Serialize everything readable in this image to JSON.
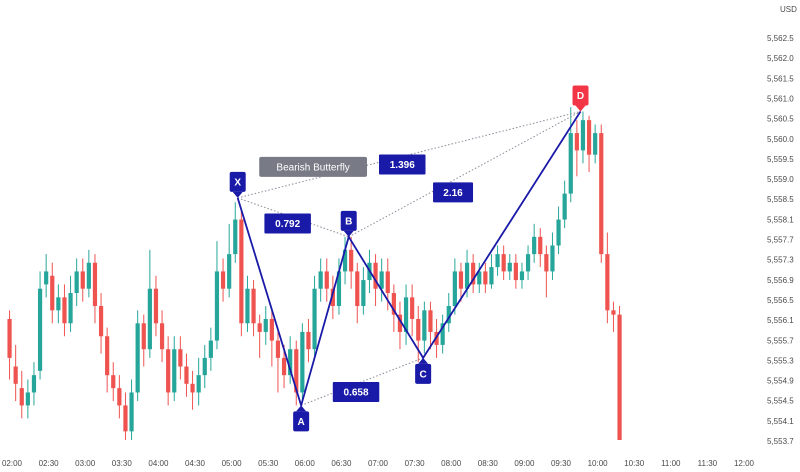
{
  "chart_data": {
    "type": "candlestick",
    "currency": "USD",
    "y_ticks": [
      "5,562.5",
      "5,562.0",
      "5,561.5",
      "5,561.0",
      "5,560.5",
      "5,560.0",
      "5,559.5",
      "5,559.0",
      "5,558.5",
      "5,558.1",
      "5,557.7",
      "5,557.3",
      "5,556.9",
      "5,556.5",
      "5,556.1",
      "5,555.7",
      "5,555.3",
      "5,554.9",
      "5,554.5",
      "5,554.1",
      "5,553.7"
    ],
    "x_ticks": [
      "02:00",
      "02:30",
      "03:00",
      "03:30",
      "04:00",
      "04:30",
      "05:00",
      "05:30",
      "06:00",
      "06:30",
      "07:00",
      "07:30",
      "08:00",
      "08:30",
      "09:00",
      "09:30",
      "10:00",
      "10:30",
      "11:00",
      "11:30",
      "12:00"
    ],
    "ylim": [
      5553.4,
      5562.7
    ],
    "candles": [
      {
        "t": "01:58",
        "o": 5556.2,
        "c": 5555.3,
        "h": 5556.4,
        "l": 5554.8
      },
      {
        "t": "02:03",
        "o": 5555.1,
        "c": 5554.7,
        "h": 5555.6,
        "l": 5554.3
      },
      {
        "t": "02:08",
        "o": 5554.6,
        "c": 5554.2,
        "h": 5555.0,
        "l": 5553.9
      },
      {
        "t": "02:13",
        "o": 5554.2,
        "c": 5554.5,
        "h": 5554.8,
        "l": 5553.9
      },
      {
        "t": "02:18",
        "o": 5554.5,
        "c": 5554.9,
        "h": 5555.2,
        "l": 5554.2
      },
      {
        "t": "02:23",
        "o": 5555.0,
        "c": 5556.9,
        "h": 5557.3,
        "l": 5554.8
      },
      {
        "t": "02:28",
        "o": 5557.0,
        "c": 5557.3,
        "h": 5557.7,
        "l": 5556.7
      },
      {
        "t": "02:33",
        "o": 5557.2,
        "c": 5556.4,
        "h": 5557.5,
        "l": 5556.1
      },
      {
        "t": "02:38",
        "o": 5556.4,
        "c": 5556.7,
        "h": 5557.0,
        "l": 5556.1
      },
      {
        "t": "02:43",
        "o": 5556.7,
        "c": 5556.1,
        "h": 5557.0,
        "l": 5555.8
      },
      {
        "t": "02:48",
        "o": 5556.1,
        "c": 5556.8,
        "h": 5557.2,
        "l": 5555.9
      },
      {
        "t": "02:53",
        "o": 5556.8,
        "c": 5557.3,
        "h": 5557.6,
        "l": 5556.5
      },
      {
        "t": "02:58",
        "o": 5557.3,
        "c": 5556.9,
        "h": 5557.6,
        "l": 5556.6
      },
      {
        "t": "03:03",
        "o": 5556.9,
        "c": 5557.5,
        "h": 5557.8,
        "l": 5556.7
      },
      {
        "t": "03:08",
        "o": 5557.5,
        "c": 5556.5,
        "h": 5557.7,
        "l": 5556.1
      },
      {
        "t": "03:13",
        "o": 5556.5,
        "c": 5555.8,
        "h": 5556.8,
        "l": 5555.4
      },
      {
        "t": "03:18",
        "o": 5555.8,
        "c": 5554.9,
        "h": 5556.0,
        "l": 5554.5
      },
      {
        "t": "03:23",
        "o": 5554.9,
        "c": 5554.6,
        "h": 5555.2,
        "l": 5554.3
      },
      {
        "t": "03:28",
        "o": 5554.6,
        "c": 5554.2,
        "h": 5554.9,
        "l": 5553.9
      },
      {
        "t": "03:33",
        "o": 5554.2,
        "c": 5553.6,
        "h": 5554.5,
        "l": 5553.4
      },
      {
        "t": "03:38",
        "o": 5553.6,
        "c": 5554.5,
        "h": 5554.8,
        "l": 5553.4
      },
      {
        "t": "03:43",
        "o": 5554.5,
        "c": 5556.1,
        "h": 5556.4,
        "l": 5554.3
      },
      {
        "t": "03:48",
        "o": 5556.1,
        "c": 5555.5,
        "h": 5556.3,
        "l": 5555.1
      },
      {
        "t": "03:53",
        "o": 5555.5,
        "c": 5556.9,
        "h": 5557.8,
        "l": 5555.3
      },
      {
        "t": "03:58",
        "o": 5556.9,
        "c": 5556.1,
        "h": 5557.2,
        "l": 5555.8
      },
      {
        "t": "04:03",
        "o": 5556.1,
        "c": 5555.5,
        "h": 5556.4,
        "l": 5555.2
      },
      {
        "t": "04:08",
        "o": 5555.5,
        "c": 5554.5,
        "h": 5555.8,
        "l": 5554.2
      },
      {
        "t": "04:13",
        "o": 5554.5,
        "c": 5555.5,
        "h": 5555.8,
        "l": 5554.3
      },
      {
        "t": "04:18",
        "o": 5555.5,
        "c": 5555.1,
        "h": 5555.8,
        "l": 5554.8
      },
      {
        "t": "04:23",
        "o": 5555.1,
        "c": 5554.7,
        "h": 5555.4,
        "l": 5554.4
      },
      {
        "t": "04:28",
        "o": 5554.7,
        "c": 5554.5,
        "h": 5555.0,
        "l": 5554.1
      },
      {
        "t": "04:33",
        "o": 5554.5,
        "c": 5554.9,
        "h": 5555.3,
        "l": 5554.2
      },
      {
        "t": "04:38",
        "o": 5554.9,
        "c": 5555.3,
        "h": 5555.6,
        "l": 5554.6
      },
      {
        "t": "04:43",
        "o": 5555.3,
        "c": 5555.7,
        "h": 5556.0,
        "l": 5555.0
      },
      {
        "t": "04:48",
        "o": 5555.7,
        "c": 5557.3,
        "h": 5558.0,
        "l": 5555.5
      },
      {
        "t": "04:53",
        "o": 5557.3,
        "c": 5556.9,
        "h": 5557.6,
        "l": 5556.6
      },
      {
        "t": "04:58",
        "o": 5556.9,
        "c": 5557.7,
        "h": 5558.4,
        "l": 5556.7
      },
      {
        "t": "05:03",
        "o": 5557.7,
        "c": 5558.5,
        "h": 5558.9,
        "l": 5557.5
      },
      {
        "t": "05:08",
        "o": 5558.5,
        "c": 5556.1,
        "h": 5558.7,
        "l": 5555.8
      },
      {
        "t": "05:13",
        "o": 5556.1,
        "c": 5556.9,
        "h": 5557.2,
        "l": 5555.9
      },
      {
        "t": "05:18",
        "o": 5556.9,
        "c": 5556.1,
        "h": 5557.1,
        "l": 5555.8
      },
      {
        "t": "05:23",
        "o": 5556.1,
        "c": 5555.9,
        "h": 5556.3,
        "l": 5555.3
      },
      {
        "t": "05:28",
        "o": 5555.9,
        "c": 5556.2,
        "h": 5556.5,
        "l": 5555.6
      },
      {
        "t": "05:33",
        "o": 5556.2,
        "c": 5555.7,
        "h": 5556.4,
        "l": 5555.1
      },
      {
        "t": "05:38",
        "o": 5555.7,
        "c": 5555.3,
        "h": 5556.0,
        "l": 5554.5
      },
      {
        "t": "05:43",
        "o": 5555.3,
        "c": 5554.9,
        "h": 5555.6,
        "l": 5554.6
      },
      {
        "t": "05:48",
        "o": 5554.9,
        "c": 5555.5,
        "h": 5555.8,
        "l": 5554.7
      },
      {
        "t": "05:53",
        "o": 5555.5,
        "c": 5554.5,
        "h": 5555.7,
        "l": 5554.2
      },
      {
        "t": "05:58",
        "o": 5554.5,
        "c": 5555.9,
        "h": 5556.1,
        "l": 5554.3
      },
      {
        "t": "06:03",
        "o": 5555.9,
        "c": 5555.5,
        "h": 5556.2,
        "l": 5555.2
      },
      {
        "t": "06:08",
        "o": 5555.5,
        "c": 5556.9,
        "h": 5557.2,
        "l": 5555.3
      },
      {
        "t": "06:13",
        "o": 5556.9,
        "c": 5557.3,
        "h": 5557.6,
        "l": 5556.6
      },
      {
        "t": "06:18",
        "o": 5557.3,
        "c": 5556.9,
        "h": 5557.6,
        "l": 5556.6
      },
      {
        "t": "06:23",
        "o": 5556.9,
        "c": 5556.5,
        "h": 5557.2,
        "l": 5556.2
      },
      {
        "t": "06:28",
        "o": 5556.5,
        "c": 5557.3,
        "h": 5557.6,
        "l": 5556.3
      },
      {
        "t": "06:33",
        "o": 5557.3,
        "c": 5557.8,
        "h": 5558.1,
        "l": 5557.0
      },
      {
        "t": "06:38",
        "o": 5557.8,
        "c": 5557.3,
        "h": 5558.1,
        "l": 5556.9
      },
      {
        "t": "06:43",
        "o": 5557.3,
        "c": 5556.5,
        "h": 5557.5,
        "l": 5556.1
      },
      {
        "t": "06:48",
        "o": 5556.5,
        "c": 5557.1,
        "h": 5557.4,
        "l": 5556.3
      },
      {
        "t": "06:53",
        "o": 5557.1,
        "c": 5557.5,
        "h": 5557.8,
        "l": 5556.8
      },
      {
        "t": "06:58",
        "o": 5557.5,
        "c": 5556.9,
        "h": 5557.7,
        "l": 5556.5
      },
      {
        "t": "07:03",
        "o": 5556.9,
        "c": 5557.3,
        "h": 5557.6,
        "l": 5556.6
      },
      {
        "t": "07:08",
        "o": 5557.3,
        "c": 5556.8,
        "h": 5557.6,
        "l": 5556.4
      },
      {
        "t": "07:13",
        "o": 5556.8,
        "c": 5556.3,
        "h": 5557.0,
        "l": 5555.9
      },
      {
        "t": "07:18",
        "o": 5556.3,
        "c": 5555.9,
        "h": 5556.6,
        "l": 5555.5
      },
      {
        "t": "07:23",
        "o": 5555.9,
        "c": 5556.7,
        "h": 5557.0,
        "l": 5555.6
      },
      {
        "t": "07:28",
        "o": 5556.7,
        "c": 5556.2,
        "h": 5557.0,
        "l": 5555.8
      },
      {
        "t": "07:33",
        "o": 5556.2,
        "c": 5555.7,
        "h": 5556.5,
        "l": 5555.2
      },
      {
        "t": "07:38",
        "o": 5555.7,
        "c": 5556.4,
        "h": 5556.6,
        "l": 5555.4
      },
      {
        "t": "07:43",
        "o": 5556.4,
        "c": 5555.9,
        "h": 5556.6,
        "l": 5555.5
      },
      {
        "t": "07:48",
        "o": 5555.9,
        "c": 5555.6,
        "h": 5556.2,
        "l": 5555.3
      },
      {
        "t": "07:53",
        "o": 5555.6,
        "c": 5556.1,
        "h": 5556.3,
        "l": 5555.4
      },
      {
        "t": "07:58",
        "o": 5556.1,
        "c": 5556.5,
        "h": 5556.8,
        "l": 5555.9
      },
      {
        "t": "08:03",
        "o": 5556.5,
        "c": 5557.3,
        "h": 5557.6,
        "l": 5556.3
      },
      {
        "t": "08:08",
        "o": 5557.3,
        "c": 5556.9,
        "h": 5557.5,
        "l": 5556.6
      },
      {
        "t": "08:13",
        "o": 5556.9,
        "c": 5557.5,
        "h": 5557.8,
        "l": 5556.7
      },
      {
        "t": "08:18",
        "o": 5557.5,
        "c": 5557.0,
        "h": 5557.7,
        "l": 5556.8
      },
      {
        "t": "08:23",
        "o": 5557.0,
        "c": 5557.3,
        "h": 5557.5,
        "l": 5556.8
      },
      {
        "t": "08:28",
        "o": 5557.3,
        "c": 5557.0,
        "h": 5557.5,
        "l": 5556.8
      },
      {
        "t": "08:33",
        "o": 5557.0,
        "c": 5557.4,
        "h": 5557.7,
        "l": 5556.9
      },
      {
        "t": "08:38",
        "o": 5557.4,
        "c": 5557.7,
        "h": 5557.9,
        "l": 5557.2
      },
      {
        "t": "08:43",
        "o": 5557.7,
        "c": 5557.3,
        "h": 5557.9,
        "l": 5557.1
      },
      {
        "t": "08:48",
        "o": 5557.3,
        "c": 5557.5,
        "h": 5557.7,
        "l": 5557.1
      },
      {
        "t": "08:53",
        "o": 5557.5,
        "c": 5557.1,
        "h": 5557.7,
        "l": 5556.9
      },
      {
        "t": "08:58",
        "o": 5557.1,
        "c": 5557.3,
        "h": 5557.5,
        "l": 5556.9
      },
      {
        "t": "09:03",
        "o": 5557.3,
        "c": 5557.7,
        "h": 5557.9,
        "l": 5557.1
      },
      {
        "t": "09:08",
        "o": 5557.7,
        "c": 5558.1,
        "h": 5558.4,
        "l": 5557.5
      },
      {
        "t": "09:13",
        "o": 5558.1,
        "c": 5557.7,
        "h": 5558.3,
        "l": 5557.4
      },
      {
        "t": "09:18",
        "o": 5557.7,
        "c": 5557.3,
        "h": 5557.9,
        "l": 5556.7
      },
      {
        "t": "09:23",
        "o": 5557.3,
        "c": 5557.9,
        "h": 5558.2,
        "l": 5557.1
      },
      {
        "t": "09:28",
        "o": 5557.9,
        "c": 5558.5,
        "h": 5558.8,
        "l": 5557.7
      },
      {
        "t": "09:33",
        "o": 5558.5,
        "c": 5559.1,
        "h": 5559.4,
        "l": 5558.3
      },
      {
        "t": "09:38",
        "o": 5559.1,
        "c": 5560.5,
        "h": 5561.1,
        "l": 5558.9
      },
      {
        "t": "09:43",
        "o": 5560.5,
        "c": 5560.1,
        "h": 5560.8,
        "l": 5559.5
      },
      {
        "t": "09:48",
        "o": 5560.1,
        "c": 5560.8,
        "h": 5561.0,
        "l": 5559.8
      },
      {
        "t": "09:53",
        "o": 5560.8,
        "c": 5560.0,
        "h": 5560.9,
        "l": 5559.6
      },
      {
        "t": "09:58",
        "o": 5560.0,
        "c": 5560.5,
        "h": 5560.7,
        "l": 5559.8
      },
      {
        "t": "10:03",
        "o": 5560.5,
        "c": 5557.7,
        "h": 5560.7,
        "l": 5557.5
      },
      {
        "t": "10:08",
        "o": 5557.7,
        "c": 5556.4,
        "h": 5558.2,
        "l": 5556.1
      },
      {
        "t": "10:13",
        "o": 5556.4,
        "c": 5556.3,
        "h": 5556.6,
        "l": 5555.9
      },
      {
        "t": "10:18",
        "o": 5556.3,
        "c": 5553.4,
        "h": 5556.5,
        "l": 5553.4
      }
    ],
    "pattern": {
      "name": "Bearish Butterfly",
      "points": [
        {
          "label": "X",
          "t": "05:05",
          "price": 5559.0
        },
        {
          "label": "A",
          "t": "05:57",
          "price": 5554.2
        },
        {
          "label": "B",
          "t": "06:36",
          "price": 5558.1
        },
        {
          "label": "C",
          "t": "07:37",
          "price": 5555.3
        },
        {
          "label": "D",
          "t": "09:46",
          "price": 5561.0
        }
      ],
      "ratios": [
        {
          "text": "0.792"
        },
        {
          "text": "0.658"
        },
        {
          "text": "1.396"
        },
        {
          "text": "2.16"
        }
      ]
    },
    "colors": {
      "up": "#26a69a",
      "down": "#ef5350",
      "pattern": "#1a1aa8",
      "label_bg": "#1a1aa8",
      "d_label_bg": "#f23645",
      "name_bg": "#787b86"
    }
  }
}
